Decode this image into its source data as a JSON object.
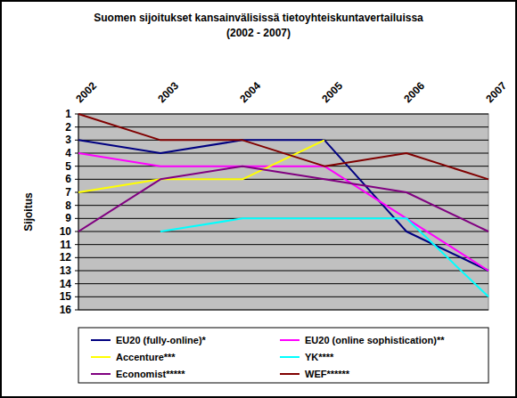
{
  "chart_data": {
    "type": "line",
    "title": "Suomen sijoitukset kansainvälisissä tietoyhteiskuntavertailuissa",
    "subtitle": "(2002 - 2007)",
    "y_label": "Sijoitus",
    "categories": [
      "2002",
      "2003",
      "2004",
      "2005",
      "2006",
      "2007"
    ],
    "series": [
      {
        "name": "EU20 (fully-online)*",
        "color": "#000080",
        "values": [
          3,
          4,
          3,
          3,
          10,
          13
        ]
      },
      {
        "name": "EU20 (online sophistication)**",
        "color": "#ff00ff",
        "values": [
          4,
          5,
          5,
          5,
          9,
          13
        ]
      },
      {
        "name": "Accenture***",
        "color": "#ffff00",
        "values": [
          7,
          6,
          6,
          3,
          null,
          null
        ]
      },
      {
        "name": "YK****",
        "color": "#00ffff",
        "values": [
          null,
          10,
          9,
          9,
          9,
          15
        ]
      },
      {
        "name": "Economist*****",
        "color": "#800080",
        "values": [
          10,
          6,
          5,
          6,
          7,
          10
        ]
      },
      {
        "name": "WEF******",
        "color": "#800000",
        "values": [
          1,
          3,
          3,
          5,
          4,
          6
        ]
      }
    ],
    "ylim": [
      16,
      1
    ],
    "yticks": [
      1,
      2,
      3,
      4,
      5,
      6,
      7,
      8,
      9,
      10,
      11,
      12,
      13,
      14,
      15,
      16
    ],
    "grid": true,
    "legend": "bottom"
  }
}
